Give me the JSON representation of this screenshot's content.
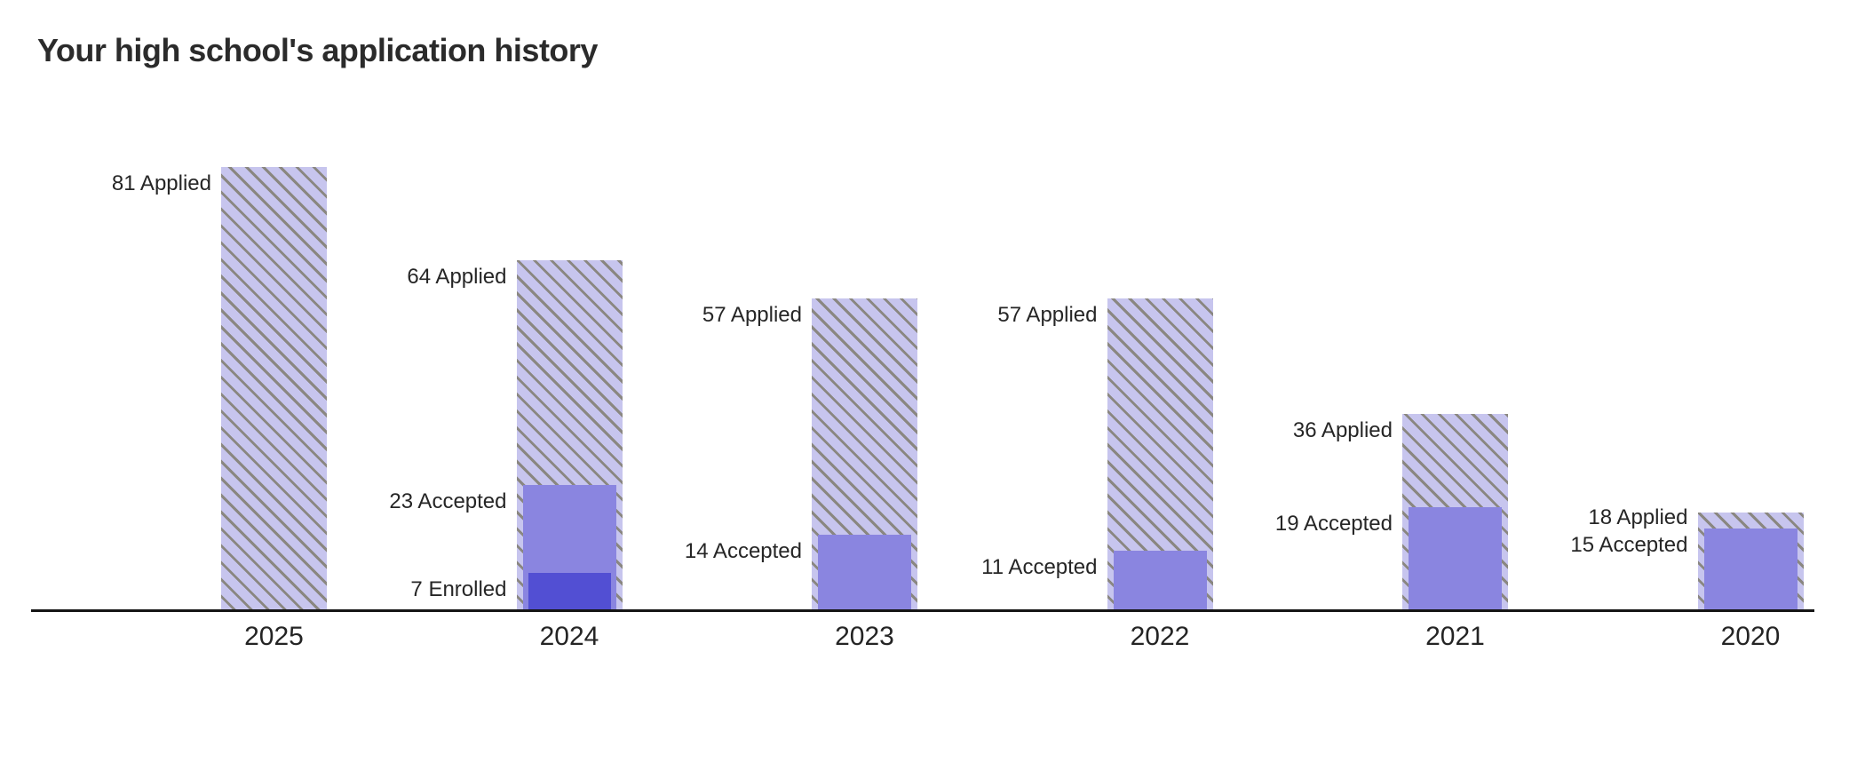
{
  "header": {
    "title": "Your high school's application history"
  },
  "colors": {
    "background": "#ffffff",
    "applied_fill": "#c7c5ee",
    "applied_hatch_line": "#8a8781",
    "accepted_fill": "#8a85e0",
    "enrolled_fill": "#524fd3",
    "axis": "#151515",
    "value_label_text": "#262626",
    "year_label_text": "#242424",
    "title_text": "#2b2b2b"
  },
  "chart_data": {
    "type": "bar",
    "title": "Your high school's application history",
    "categories": [
      "2025",
      "2024",
      "2023",
      "2022",
      "2021",
      "2020"
    ],
    "series": [
      {
        "name": "Applied",
        "style": "hatched",
        "fill": "#c7c5ee",
        "hatch_color": "#8a8781",
        "values": [
          81,
          64,
          57,
          57,
          36,
          18
        ]
      },
      {
        "name": "Accepted",
        "style": "solid",
        "fill": "#8a85e0",
        "values": [
          null,
          23,
          14,
          11,
          19,
          15
        ]
      },
      {
        "name": "Enrolled",
        "style": "solid",
        "fill": "#524fd3",
        "values": [
          null,
          7,
          null,
          null,
          null,
          null
        ]
      }
    ],
    "value_labels": [
      [
        "81 Applied"
      ],
      [
        "64 Applied",
        "23 Accepted",
        "7 Enrolled"
      ],
      [
        "57 Applied",
        "14 Accepted"
      ],
      [
        "57 Applied",
        "11 Accepted"
      ],
      [
        "36 Applied",
        "19 Accepted"
      ],
      [
        "18 Applied",
        "15 Accepted"
      ]
    ],
    "ylim": [
      0,
      81
    ],
    "xlabel": "",
    "ylabel": "",
    "grid": false,
    "legend": "none",
    "hatch_direction": "backslash"
  }
}
